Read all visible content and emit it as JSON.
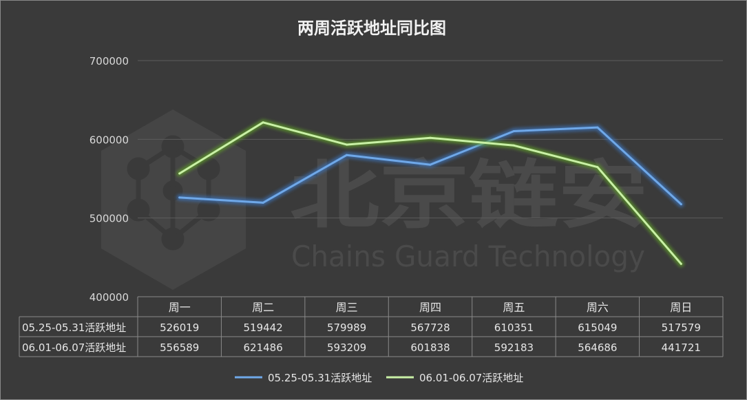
{
  "chart_data": {
    "type": "line",
    "title": "两周活跃地址同比图",
    "categories": [
      "周一",
      "周二",
      "周三",
      "周四",
      "周五",
      "周六",
      "周日"
    ],
    "series": [
      {
        "name": "05.25-05.31活跃地址",
        "values": [
          526019,
          519442,
          579989,
          567728,
          610351,
          615049,
          517579
        ],
        "color": "#6fa8e8",
        "glow": "#3d6fb0"
      },
      {
        "name": "06.01-06.07活跃地址",
        "values": [
          556589,
          621486,
          593209,
          601838,
          592183,
          564686,
          441721
        ],
        "color": "#c9f0a6",
        "glow": "#5f9a2a"
      }
    ],
    "y_ticks": [
      "700000",
      "600000",
      "500000",
      "400000"
    ],
    "ylim": [
      400000,
      700000
    ],
    "grid": true,
    "legend_position": "bottom",
    "data_table": true
  },
  "watermark": {
    "title": "北京链安",
    "subtitle": "Chains Guard Technology"
  }
}
